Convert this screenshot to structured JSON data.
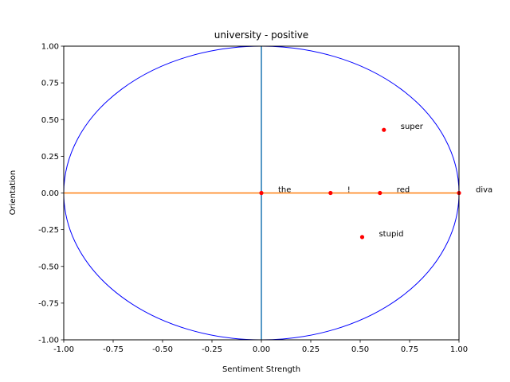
{
  "chart_data": {
    "type": "scatter",
    "title": "university - positive",
    "xlabel": "Sentiment Strength",
    "ylabel": "Orientation",
    "xlim": [
      -1.0,
      1.0
    ],
    "ylim": [
      -1.0,
      1.0
    ],
    "xticks": [
      "-1.00",
      "-0.75",
      "-0.50",
      "-0.25",
      "0.00",
      "0.25",
      "0.50",
      "0.75",
      "1.00"
    ],
    "yticks": [
      "-1.00",
      "-0.75",
      "-0.50",
      "-0.25",
      "0.00",
      "0.25",
      "0.50",
      "0.75",
      "1.00"
    ],
    "grid": false,
    "unit_circle": {
      "radius": 1.0,
      "color": "#0000ff"
    },
    "reference_lines": [
      {
        "orientation": "vertical",
        "value": 0.0,
        "color": "#1f77b4"
      },
      {
        "orientation": "horizontal",
        "value": 0.0,
        "color": "#ff7f0e"
      }
    ],
    "point_color": "#ff0000",
    "points": [
      {
        "label": "the",
        "x": 0.0,
        "y": 0.0
      },
      {
        "label": "!",
        "x": 0.35,
        "y": 0.0
      },
      {
        "label": "red",
        "x": 0.6,
        "y": 0.0
      },
      {
        "label": "diva",
        "x": 1.0,
        "y": 0.0
      },
      {
        "label": "super",
        "x": 0.62,
        "y": 0.43
      },
      {
        "label": "stupid",
        "x": 0.51,
        "y": -0.3
      }
    ]
  }
}
